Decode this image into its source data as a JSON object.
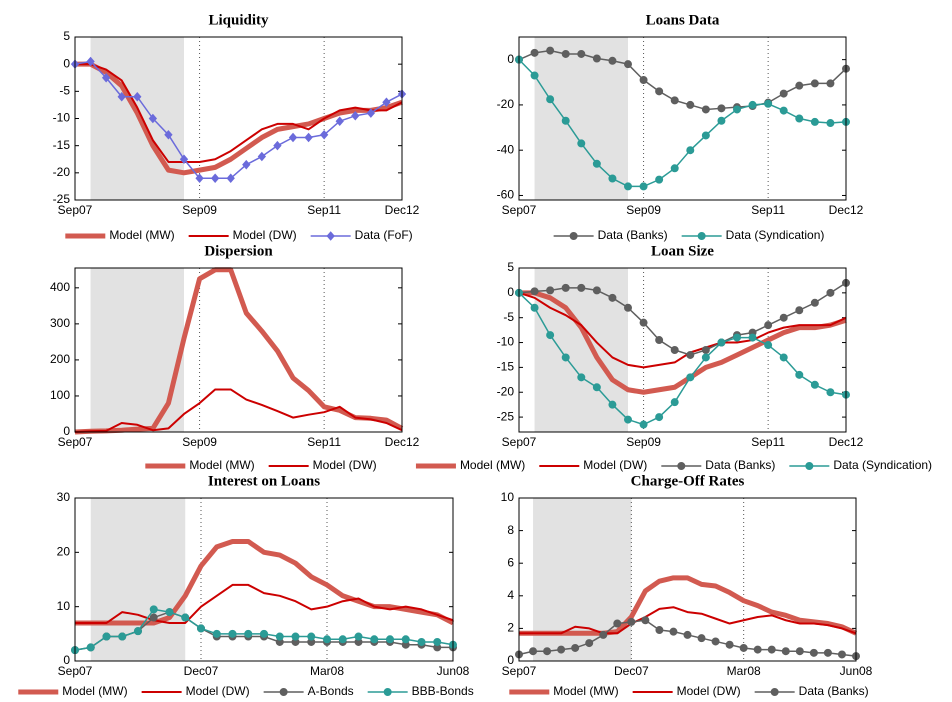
{
  "chart_data": [
    {
      "type": "line",
      "title": "Liquidity",
      "categories": [
        "Sep07",
        null,
        null,
        null,
        null,
        null,
        null,
        null,
        "Sep09",
        null,
        null,
        null,
        null,
        null,
        null,
        null,
        "Sep11",
        null,
        null,
        null,
        null,
        "Dec12"
      ],
      "ylim": [
        -25,
        5
      ],
      "yticks": [
        5,
        0,
        -5,
        -10,
        -15,
        -20,
        -25
      ],
      "grid": true,
      "shaded_span": [
        1,
        7
      ],
      "series": [
        {
          "name": "Model (MW)",
          "color": "#d25a50",
          "width": 5,
          "marker": "none",
          "values": [
            0,
            0,
            -1.5,
            -4,
            -9,
            -15,
            -19.5,
            -20,
            -19.5,
            -19,
            -17.5,
            -15.5,
            -13.5,
            -12,
            -11.5,
            -11,
            -10,
            -9,
            -8.5,
            -8.5,
            -8,
            -7
          ]
        },
        {
          "name": "Model (DW)",
          "color": "#cc0000",
          "width": 2,
          "marker": "none",
          "values": [
            0,
            0,
            -1,
            -3,
            -8,
            -14,
            -18,
            -18,
            -18,
            -17.5,
            -16,
            -14,
            -12,
            -11,
            -11,
            -12,
            -10,
            -8.5,
            -8,
            -8.5,
            -8.5,
            -7
          ]
        },
        {
          "name": "Data (FoF)",
          "color": "#6b6bdb",
          "width": 1.5,
          "marker": "diamond",
          "values": [
            0,
            0.5,
            -2.5,
            -6,
            -6,
            -10,
            -13,
            -17.5,
            -21,
            -21,
            -21,
            -18.5,
            -17,
            -15,
            -13.5,
            -13.5,
            -13,
            -10.5,
            -9.5,
            -9,
            -7,
            -5.5
          ]
        }
      ]
    },
    {
      "type": "line",
      "title": "Loans Data",
      "categories": [
        "Sep07",
        null,
        null,
        null,
        null,
        null,
        null,
        null,
        "Sep09",
        null,
        null,
        null,
        null,
        null,
        null,
        null,
        "Sep11",
        null,
        null,
        null,
        null,
        "Dec12"
      ],
      "ylim": [
        -62,
        10
      ],
      "yticks": [
        0,
        -20,
        -40,
        -60
      ],
      "grid": true,
      "shaded_span": [
        1,
        7
      ],
      "series": [
        {
          "name": "Data (Banks)",
          "color": "#5f5f5f",
          "width": 1.5,
          "marker": "circle",
          "values": [
            0,
            3,
            4,
            2.5,
            2.5,
            0.5,
            -0.5,
            -2,
            -9,
            -14,
            -18,
            -20,
            -22,
            -21.5,
            -21,
            -20.5,
            -19,
            -15,
            -11.5,
            -10.5,
            -10.5,
            -4
          ]
        },
        {
          "name": "Data (Syndication)",
          "color": "#2b9b96",
          "width": 1.5,
          "marker": "circle",
          "values": [
            0,
            -7,
            -17.5,
            -27,
            -37,
            -46,
            -52.5,
            -56,
            -56,
            -53,
            -48,
            -40,
            -33.5,
            -27,
            -22,
            -20,
            -19.5,
            -22.5,
            -26,
            -27.5,
            -28,
            -27.5
          ]
        }
      ]
    },
    {
      "type": "line",
      "title": "Dispersion",
      "categories": [
        "Sep07",
        null,
        null,
        null,
        null,
        null,
        null,
        null,
        "Sep09",
        null,
        null,
        null,
        null,
        null,
        null,
        null,
        "Sep11",
        null,
        null,
        null,
        null,
        "Dec12"
      ],
      "ylim": [
        0,
        455
      ],
      "yticks": [
        0,
        100,
        200,
        300,
        400
      ],
      "grid": true,
      "shaded_span": [
        1,
        7
      ],
      "series": [
        {
          "name": "Model (MW)",
          "color": "#d25a50",
          "width": 5,
          "marker": "none",
          "values": [
            0,
            2,
            3,
            5,
            8,
            10,
            80,
            260,
            425,
            450,
            450,
            330,
            280,
            225,
            150,
            115,
            70,
            60,
            40,
            38,
            33,
            10
          ]
        },
        {
          "name": "Model (DW)",
          "color": "#cc0000",
          "width": 2,
          "marker": "none",
          "values": [
            0,
            2,
            3,
            25,
            20,
            5,
            10,
            50,
            80,
            118,
            118,
            90,
            75,
            58,
            40,
            48,
            55,
            70,
            40,
            35,
            25,
            5
          ]
        }
      ]
    },
    {
      "type": "line",
      "title": "Loan Size",
      "categories": [
        "Sep07",
        null,
        null,
        null,
        null,
        null,
        null,
        null,
        "Sep09",
        null,
        null,
        null,
        null,
        null,
        null,
        null,
        "Sep11",
        null,
        null,
        null,
        null,
        "Dec12"
      ],
      "ylim": [
        -28,
        5
      ],
      "yticks": [
        5,
        0,
        -5,
        -10,
        -15,
        -20,
        -25
      ],
      "grid": true,
      "shaded_span": [
        1,
        7
      ],
      "series": [
        {
          "name": "Model (MW)",
          "color": "#d25a50",
          "width": 5,
          "marker": "none",
          "values": [
            0,
            0,
            -1,
            -3,
            -7,
            -13,
            -17.5,
            -19.5,
            -20,
            -19.5,
            -19,
            -17,
            -15,
            -14,
            -12.5,
            -11,
            -9.5,
            -8,
            -7,
            -7,
            -6.5,
            -5.5
          ]
        },
        {
          "name": "Model (DW)",
          "color": "#cc0000",
          "width": 2,
          "marker": "none",
          "values": [
            0,
            -1,
            -3,
            -4.5,
            -6.5,
            -10,
            -13,
            -14.5,
            -15,
            -14.5,
            -14,
            -12,
            -11,
            -10,
            -10,
            -9.5,
            -8,
            -7,
            -6.5,
            -6.5,
            -6.5,
            -5
          ]
        },
        {
          "name": "Data (Banks)",
          "color": "#5f5f5f",
          "width": 1.5,
          "marker": "circle",
          "values": [
            0,
            0.3,
            0.5,
            1,
            1,
            0.5,
            -1,
            -3,
            -6,
            -9.5,
            -11.5,
            -12.5,
            -11.5,
            -10,
            -8.5,
            -8,
            -6.5,
            -5,
            -3.5,
            -2,
            0,
            2
          ]
        },
        {
          "name": "Data (Syndication)",
          "color": "#2b9b96",
          "width": 1.5,
          "marker": "circle",
          "values": [
            0,
            -3,
            -8.5,
            -13,
            -17,
            -19,
            -22.5,
            -25.5,
            -26.5,
            -25,
            -22,
            -17,
            -13,
            -10,
            -9,
            -9,
            -10.5,
            -13,
            -16.5,
            -18.5,
            -20,
            -20.5
          ]
        }
      ]
    },
    {
      "type": "line",
      "title": "Interest on Loans",
      "categories": [
        "Sep07",
        null,
        null,
        null,
        null,
        null,
        null,
        null,
        "Dec07",
        null,
        null,
        null,
        null,
        null,
        null,
        null,
        "Mar08",
        null,
        null,
        null,
        null,
        null,
        null,
        null,
        "Jun08"
      ],
      "ylim": [
        0,
        30
      ],
      "yticks": [
        0,
        10,
        20,
        30
      ],
      "grid": true,
      "shaded_span": [
        1,
        7
      ],
      "series": [
        {
          "name": "Model (MW)",
          "color": "#d25a50",
          "width": 5,
          "marker": "none",
          "values": [
            7,
            7,
            7,
            7,
            7,
            7,
            8,
            12,
            17.5,
            21,
            22,
            22,
            20,
            19.5,
            18,
            15.5,
            14,
            12,
            11,
            10,
            10,
            9.5,
            9,
            8.5,
            7
          ]
        },
        {
          "name": "Model (DW)",
          "color": "#cc0000",
          "width": 2,
          "marker": "none",
          "values": [
            7,
            7,
            7,
            9,
            8.5,
            7.5,
            7,
            7,
            10,
            12,
            14,
            14,
            12.5,
            12,
            11,
            9.5,
            10,
            11,
            11.5,
            10,
            9.5,
            10,
            9.5,
            8.5,
            7.5
          ]
        },
        {
          "name": "A-Bonds",
          "color": "#5f5f5f",
          "width": 1.5,
          "marker": "circle",
          "values": [
            2,
            2.5,
            4.5,
            4.5,
            5.5,
            8,
            9,
            8,
            6,
            4.5,
            4.5,
            4.5,
            4.5,
            3.5,
            3.5,
            3.5,
            3.5,
            3.5,
            3.5,
            3.5,
            3.5,
            3,
            3,
            2.5,
            2.5
          ]
        },
        {
          "name": "BBB-Bonds",
          "color": "#2b9b96",
          "width": 1.5,
          "marker": "circle",
          "values": [
            2,
            2.5,
            4.5,
            4.5,
            5.5,
            9.5,
            9,
            8,
            6,
            5,
            5,
            5,
            5,
            4.5,
            4.5,
            4.5,
            4,
            4,
            4.5,
            4,
            4,
            4,
            3.5,
            3.5,
            3
          ]
        }
      ]
    },
    {
      "type": "line",
      "title": "Charge-Off Rates",
      "categories": [
        "Sep07",
        null,
        null,
        null,
        null,
        null,
        null,
        null,
        "Dec07",
        null,
        null,
        null,
        null,
        null,
        null,
        null,
        "Mar08",
        null,
        null,
        null,
        null,
        null,
        null,
        null,
        "Jun08"
      ],
      "ylim": [
        0,
        10
      ],
      "yticks": [
        0,
        2,
        4,
        6,
        8,
        10
      ],
      "grid": true,
      "shaded_span": [
        1,
        8
      ],
      "series": [
        {
          "name": "Model (MW)",
          "color": "#d25a50",
          "width": 5,
          "marker": "none",
          "values": [
            1.7,
            1.7,
            1.7,
            1.7,
            1.7,
            1.7,
            1.7,
            1.8,
            2.7,
            4.3,
            4.9,
            5.1,
            5.1,
            4.7,
            4.6,
            4.2,
            3.7,
            3.4,
            3.0,
            2.8,
            2.5,
            2.4,
            2.3,
            2.1,
            1.7
          ]
        },
        {
          "name": "Model (DW)",
          "color": "#cc0000",
          "width": 2,
          "marker": "none",
          "values": [
            1.7,
            1.7,
            1.7,
            1.7,
            2.1,
            2.0,
            1.7,
            1.7,
            2.3,
            2.7,
            3.2,
            3.3,
            3.0,
            2.9,
            2.6,
            2.3,
            2.5,
            2.7,
            2.8,
            2.5,
            2.3,
            2.3,
            2.2,
            2.0,
            1.7
          ]
        },
        {
          "name": "Data (Banks)",
          "color": "#5f5f5f",
          "width": 1.5,
          "marker": "circle",
          "values": [
            0.4,
            0.6,
            0.6,
            0.7,
            0.8,
            1.1,
            1.6,
            2.3,
            2.4,
            2.5,
            1.9,
            1.8,
            1.6,
            1.4,
            1.2,
            1.0,
            0.8,
            0.7,
            0.7,
            0.6,
            0.6,
            0.5,
            0.5,
            0.4,
            0.3
          ]
        }
      ]
    }
  ]
}
